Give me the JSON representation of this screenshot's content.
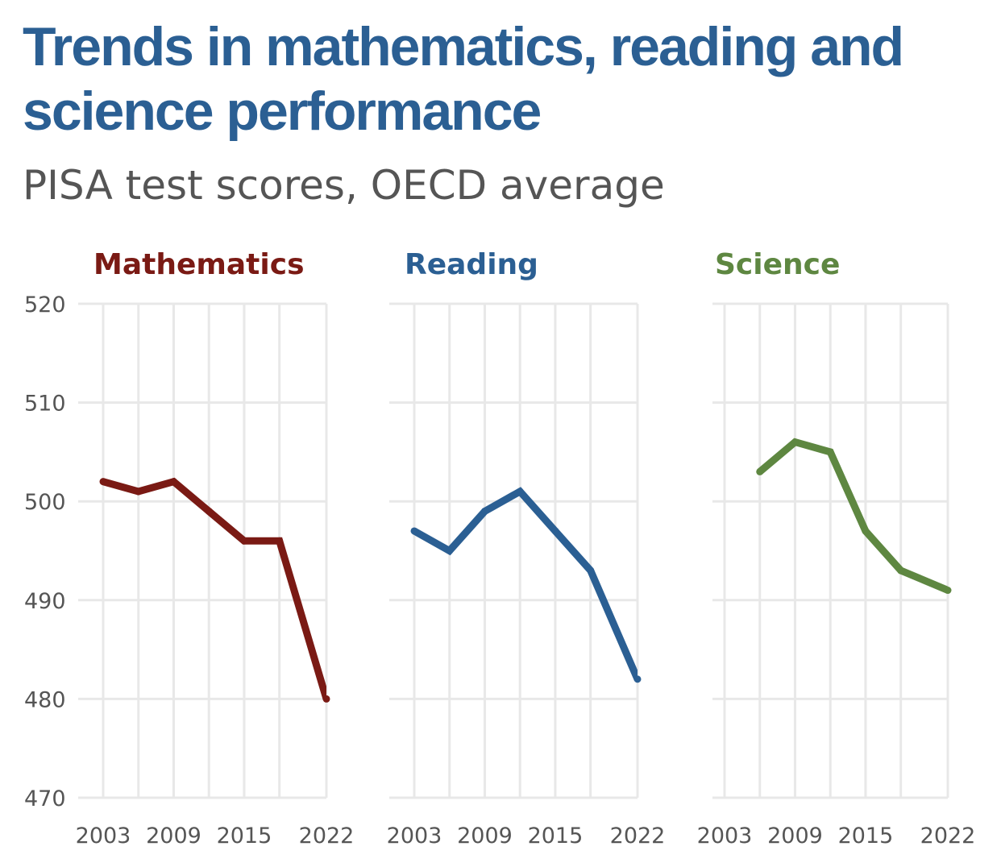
{
  "header": {
    "title": "Trends in mathematics, reading and science performance",
    "subtitle": "PISA test scores, OECD average"
  },
  "chart_data": [
    {
      "type": "line",
      "title": "Mathematics",
      "color": "#7a1a14",
      "x": [
        2003,
        2006,
        2009,
        2012,
        2015,
        2018,
        2022
      ],
      "values": [
        502,
        501,
        502,
        499,
        496,
        496,
        480
      ],
      "ylim": [
        470,
        520
      ],
      "yticks": [
        "470",
        "480",
        "490",
        "500",
        "510",
        "520"
      ],
      "xticks": [
        "2003",
        "2009",
        "2015",
        "2022"
      ],
      "grid": true
    },
    {
      "type": "line",
      "title": "Reading",
      "color": "#2b5f93",
      "x": [
        2003,
        2006,
        2009,
        2012,
        2015,
        2018,
        2022
      ],
      "values": [
        497,
        495,
        499,
        501,
        497,
        493,
        482
      ],
      "ylim": [
        470,
        520
      ],
      "xticks": [
        "2003",
        "2009",
        "2015",
        "2022"
      ],
      "grid": true
    },
    {
      "type": "line",
      "title": "Science",
      "color": "#5e8741",
      "x": [
        2006,
        2009,
        2012,
        2015,
        2018,
        2022
      ],
      "values": [
        503,
        506,
        505,
        497,
        493,
        491
      ],
      "ylim": [
        470,
        520
      ],
      "xticks": [
        "2003",
        "2009",
        "2015",
        "2022"
      ],
      "grid": true
    }
  ]
}
